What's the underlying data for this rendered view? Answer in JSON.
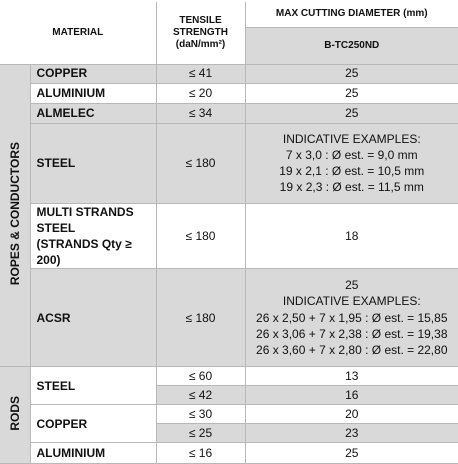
{
  "header": {
    "material": "MATERIAL",
    "tensile_strength": [
      "TENSILE",
      "STRENGTH",
      "(daN/mm²)"
    ],
    "max_cutting_diameter": "MAX CUTTING DIAMETER (mm)",
    "model": "B-TC250ND"
  },
  "groups": [
    {
      "label": "ROPES & CONDUCTORS",
      "rows": [
        {
          "material": [
            "COPPER"
          ],
          "strength": "≤ 41",
          "diameter": [
            "25"
          ]
        },
        {
          "material": [
            "ALUMINIUM"
          ],
          "strength": "≤ 20",
          "diameter": [
            "25"
          ]
        },
        {
          "material": [
            "ALMELEC"
          ],
          "strength": "≤ 34",
          "diameter": [
            "25"
          ]
        },
        {
          "material": [
            "STEEL"
          ],
          "strength": "≤ 180",
          "diameter": [
            "INDICATIVE EXAMPLES:",
            "7 x 3,0 : Ø est. =  9,0 mm",
            "19 x 2,1 : Ø est. = 10,5 mm",
            "19 x 2,3 : Ø est. = 11,5 mm"
          ]
        },
        {
          "material": [
            "MULTI STRANDS STEEL",
            "(STRANDS Qty ≥ 200)"
          ],
          "strength": "≤ 180",
          "diameter": [
            "18"
          ]
        },
        {
          "material": [
            "ACSR"
          ],
          "strength": "≤ 180",
          "diameter": [
            "25",
            "INDICATIVE EXAMPLES:",
            "26 x 2,50 +  7 x 1,95 : Ø est. = 15,85",
            "26 x 3,06 +  7 x 2,38 : Ø est. = 19,38",
            "26 x 3,60 +  7 x 2,80 : Ø est. = 22,80"
          ]
        }
      ]
    },
    {
      "label": "RODS",
      "rows": [
        {
          "material": [
            "STEEL"
          ],
          "sub": [
            {
              "strength": "≤ 60",
              "diameter": "13"
            },
            {
              "strength": "≤ 42",
              "diameter": "16"
            }
          ]
        },
        {
          "material": [
            "COPPER"
          ],
          "sub": [
            {
              "strength": "≤ 30",
              "diameter": "20"
            },
            {
              "strength": "≤ 25",
              "diameter": "23"
            }
          ]
        },
        {
          "material": [
            "ALUMINIUM"
          ],
          "strength": "≤ 16",
          "diameter": [
            "25"
          ]
        }
      ]
    }
  ]
}
